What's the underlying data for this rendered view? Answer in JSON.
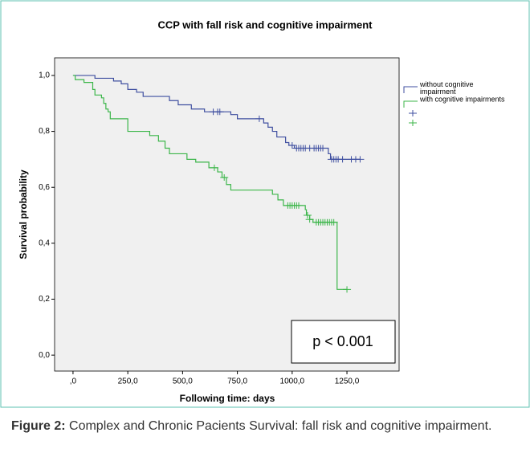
{
  "chart_data": {
    "type": "step",
    "title": "CCP with fall risk and cognitive impairment",
    "x_label": "Following time: days",
    "y_label": "Survival probability",
    "annotation": "p < 0.001",
    "xlim": [
      -84,
      1488
    ],
    "ylim": [
      -0.057,
      1.063
    ],
    "xticks": [
      {
        "value": 0,
        "label": ",0"
      },
      {
        "value": 250,
        "label": "250,0"
      },
      {
        "value": 500,
        "label": "500,0"
      },
      {
        "value": 750,
        "label": "750,0"
      },
      {
        "value": 1000,
        "label": "1000,0"
      },
      {
        "value": 1250,
        "label": "1250,0"
      }
    ],
    "yticks": [
      {
        "value": 0,
        "label": "0,0"
      },
      {
        "value": 0.2,
        "label": "0,2"
      },
      {
        "value": 0.4,
        "label": "0,4"
      },
      {
        "value": 0.6,
        "label": "0,6"
      },
      {
        "value": 0.8,
        "label": "0,8"
      },
      {
        "value": 1,
        "label": "1,0"
      }
    ],
    "series": [
      {
        "name": "without cognitive impairment",
        "color": "#3f4fa0",
        "x": [
          0,
          100,
          185,
          220,
          250,
          290,
          320,
          440,
          480,
          540,
          600,
          720,
          750,
          870,
          890,
          910,
          930,
          970,
          985,
          1010,
          1165,
          1175,
          1310
        ],
        "y": [
          1,
          0.99,
          0.98,
          0.97,
          0.95,
          0.94,
          0.925,
          0.91,
          0.895,
          0.88,
          0.87,
          0.86,
          0.845,
          0.83,
          0.815,
          0.8,
          0.78,
          0.76,
          0.75,
          0.74,
          0.72,
          0.7,
          0.7
        ],
        "censored": {
          "x": [
            640,
            660,
            670,
            850,
            1000,
            1020,
            1030,
            1040,
            1050,
            1060,
            1080,
            1100,
            1110,
            1120,
            1130,
            1140,
            1180,
            1190,
            1200,
            1210,
            1230,
            1270,
            1290,
            1310
          ],
          "y": [
            0.87,
            0.87,
            0.87,
            0.845,
            0.75,
            0.74,
            0.74,
            0.74,
            0.74,
            0.74,
            0.74,
            0.74,
            0.74,
            0.74,
            0.74,
            0.74,
            0.7,
            0.7,
            0.7,
            0.7,
            0.7,
            0.7,
            0.7,
            0.7
          ]
        }
      },
      {
        "name": "with cognitive impairments",
        "color": "#3cb64a",
        "x": [
          0,
          10,
          50,
          90,
          100,
          130,
          140,
          150,
          160,
          170,
          250,
          350,
          390,
          420,
          440,
          520,
          560,
          620,
          660,
          680,
          700,
          720,
          910,
          935,
          960,
          1060,
          1065,
          1080,
          1095,
          1205,
          1250
        ],
        "y": [
          1,
          0.985,
          0.975,
          0.95,
          0.93,
          0.92,
          0.9,
          0.88,
          0.87,
          0.845,
          0.8,
          0.785,
          0.765,
          0.74,
          0.72,
          0.7,
          0.69,
          0.67,
          0.655,
          0.635,
          0.61,
          0.59,
          0.575,
          0.555,
          0.535,
          0.52,
          0.5,
          0.485,
          0.475,
          0.235,
          0.235
        ],
        "censored": {
          "x": [
            645,
            690,
            980,
            990,
            1000,
            1010,
            1020,
            1030,
            1070,
            1080,
            1110,
            1120,
            1130,
            1140,
            1150,
            1160,
            1170,
            1180,
            1190,
            1250
          ],
          "y": [
            0.67,
            0.635,
            0.535,
            0.535,
            0.535,
            0.535,
            0.535,
            0.535,
            0.5,
            0.485,
            0.475,
            0.475,
            0.475,
            0.475,
            0.475,
            0.475,
            0.475,
            0.475,
            0.475,
            0.235
          ]
        }
      }
    ]
  },
  "caption": {
    "label": "Figure 2:",
    "text": "Complex and Chronic Pacients Survival: fall risk and cognitive impairment."
  }
}
